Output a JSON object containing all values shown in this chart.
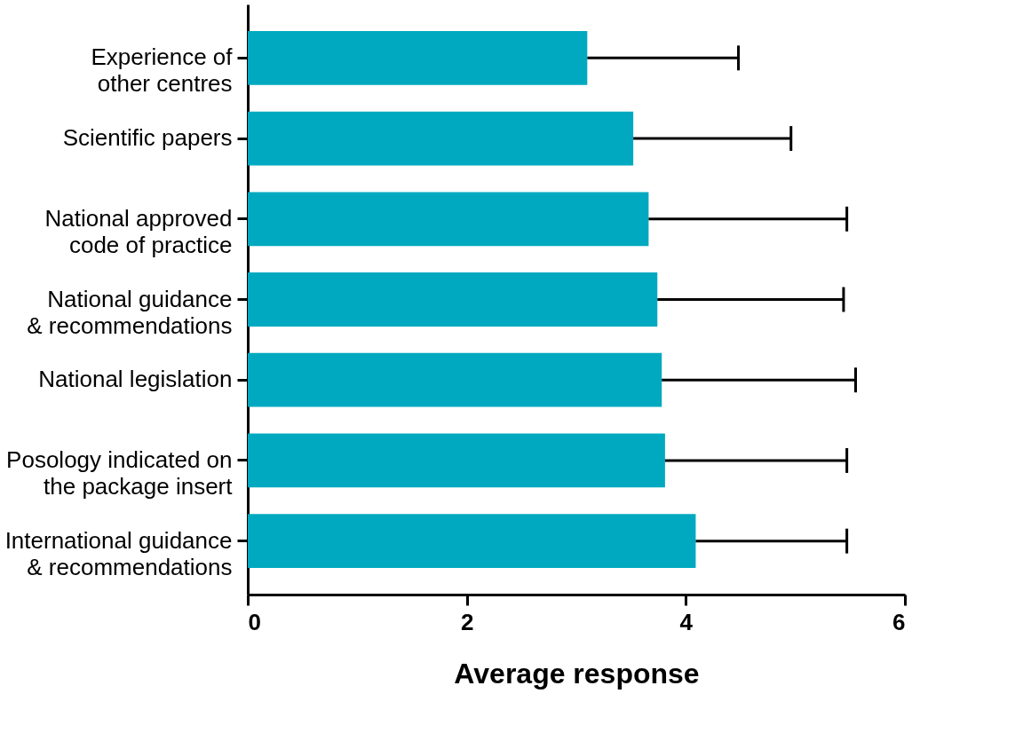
{
  "chart_data": {
    "type": "bar",
    "orientation": "horizontal",
    "xlabel": "Average response",
    "categories": [
      "Experience of\nother centres",
      "Scientific papers",
      "National approved\ncode of practice",
      "National guidance\n& recommendations",
      "National legislation",
      "Posology indicated on\nthe package insert",
      "International guidance\n& recommendations"
    ],
    "values": [
      3.1,
      3.52,
      3.66,
      3.74,
      3.78,
      3.81,
      4.09
    ],
    "errors": [
      [
        3.1,
        4.48
      ],
      [
        3.52,
        4.96
      ],
      [
        3.66,
        5.47
      ],
      [
        3.74,
        5.44
      ],
      [
        3.78,
        5.55
      ],
      [
        3.81,
        5.47
      ],
      [
        4.09,
        5.47
      ]
    ],
    "color": "#00a9bf",
    "xlim": [
      0,
      6
    ],
    "xticks": [
      0,
      2,
      4,
      6
    ],
    "grid": false
  }
}
